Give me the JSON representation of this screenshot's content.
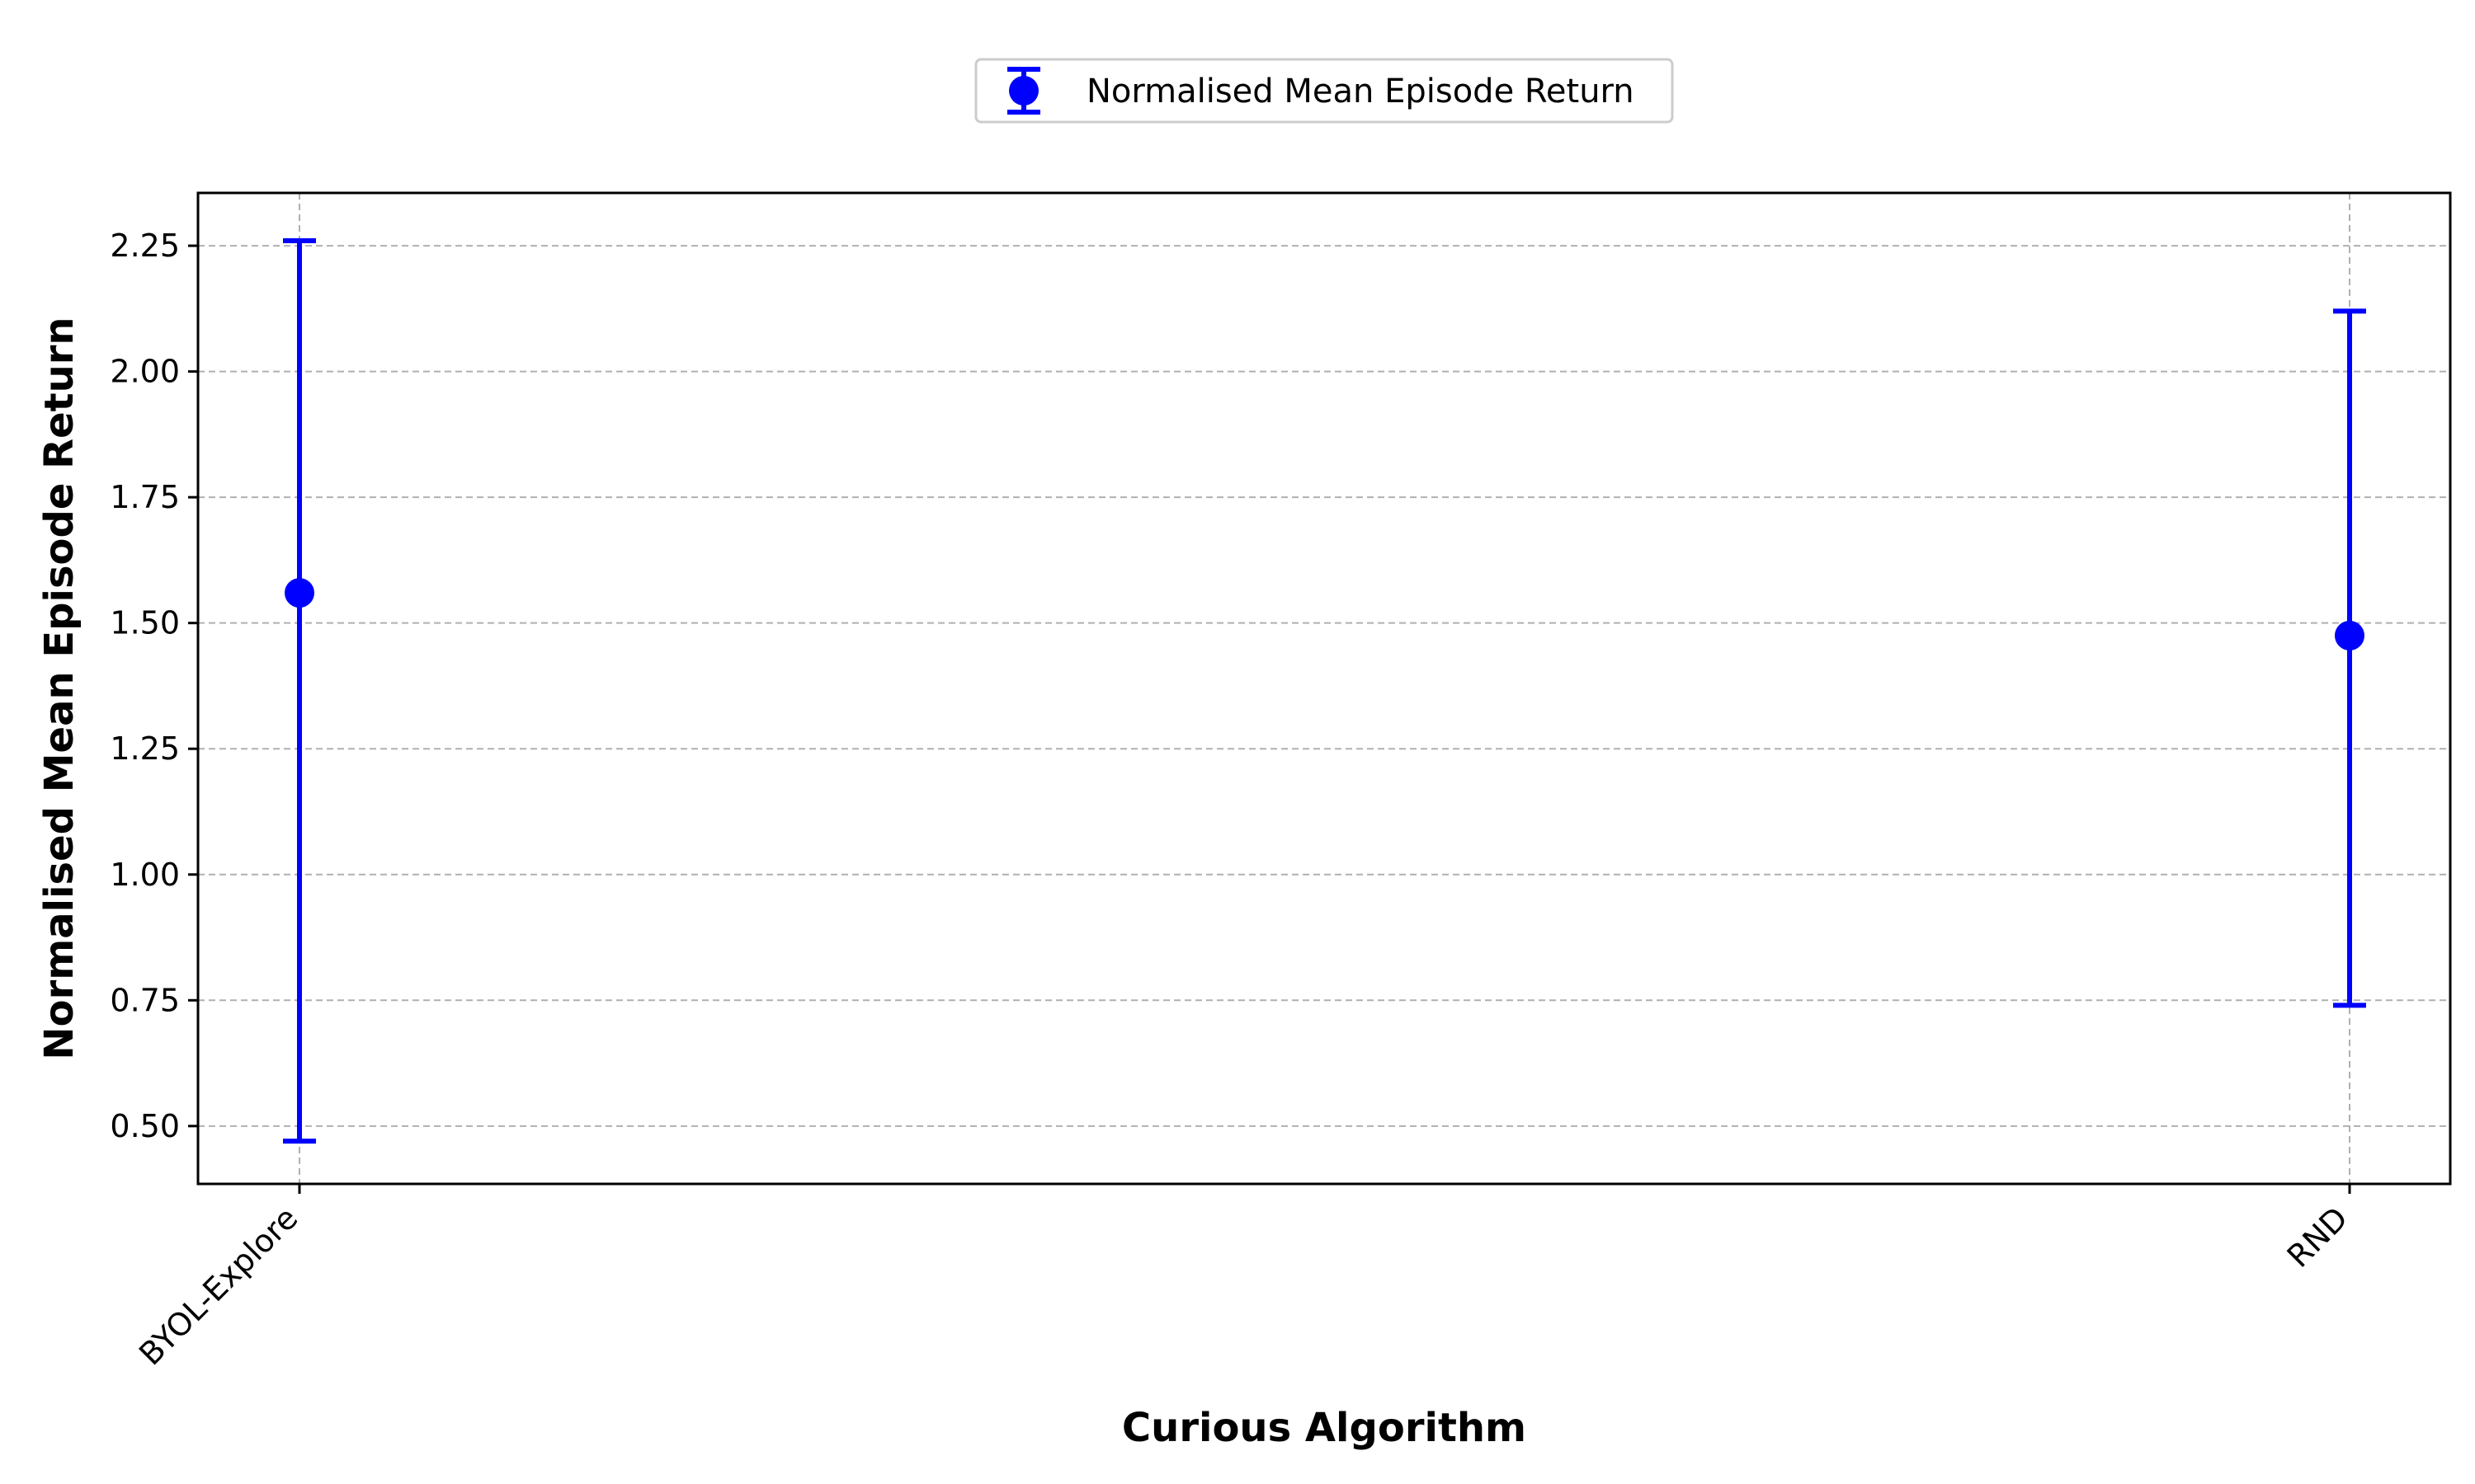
{
  "chart_data": {
    "type": "scatter",
    "xlabel": "Curious Algorithm",
    "ylabel": "Normalised Mean Episode Return",
    "categories": [
      "BYOL-Explore",
      "RND"
    ],
    "series": [
      {
        "name": "Normalised Mean Episode Return",
        "values": [
          1.56,
          1.475
        ],
        "error_low": [
          0.47,
          0.74
        ],
        "error_high": [
          2.26,
          2.12
        ],
        "color": "#0000ff"
      }
    ],
    "ylim": [
      0.385,
      2.355
    ],
    "yticks": [
      0.5,
      0.75,
      1.0,
      1.25,
      1.5,
      1.75,
      2.0,
      2.25
    ],
    "ytick_labels": [
      "0.50",
      "0.75",
      "1.00",
      "1.25",
      "1.50",
      "1.75",
      "2.00",
      "2.25"
    ],
    "grid": true,
    "legend_position": "top-center"
  }
}
